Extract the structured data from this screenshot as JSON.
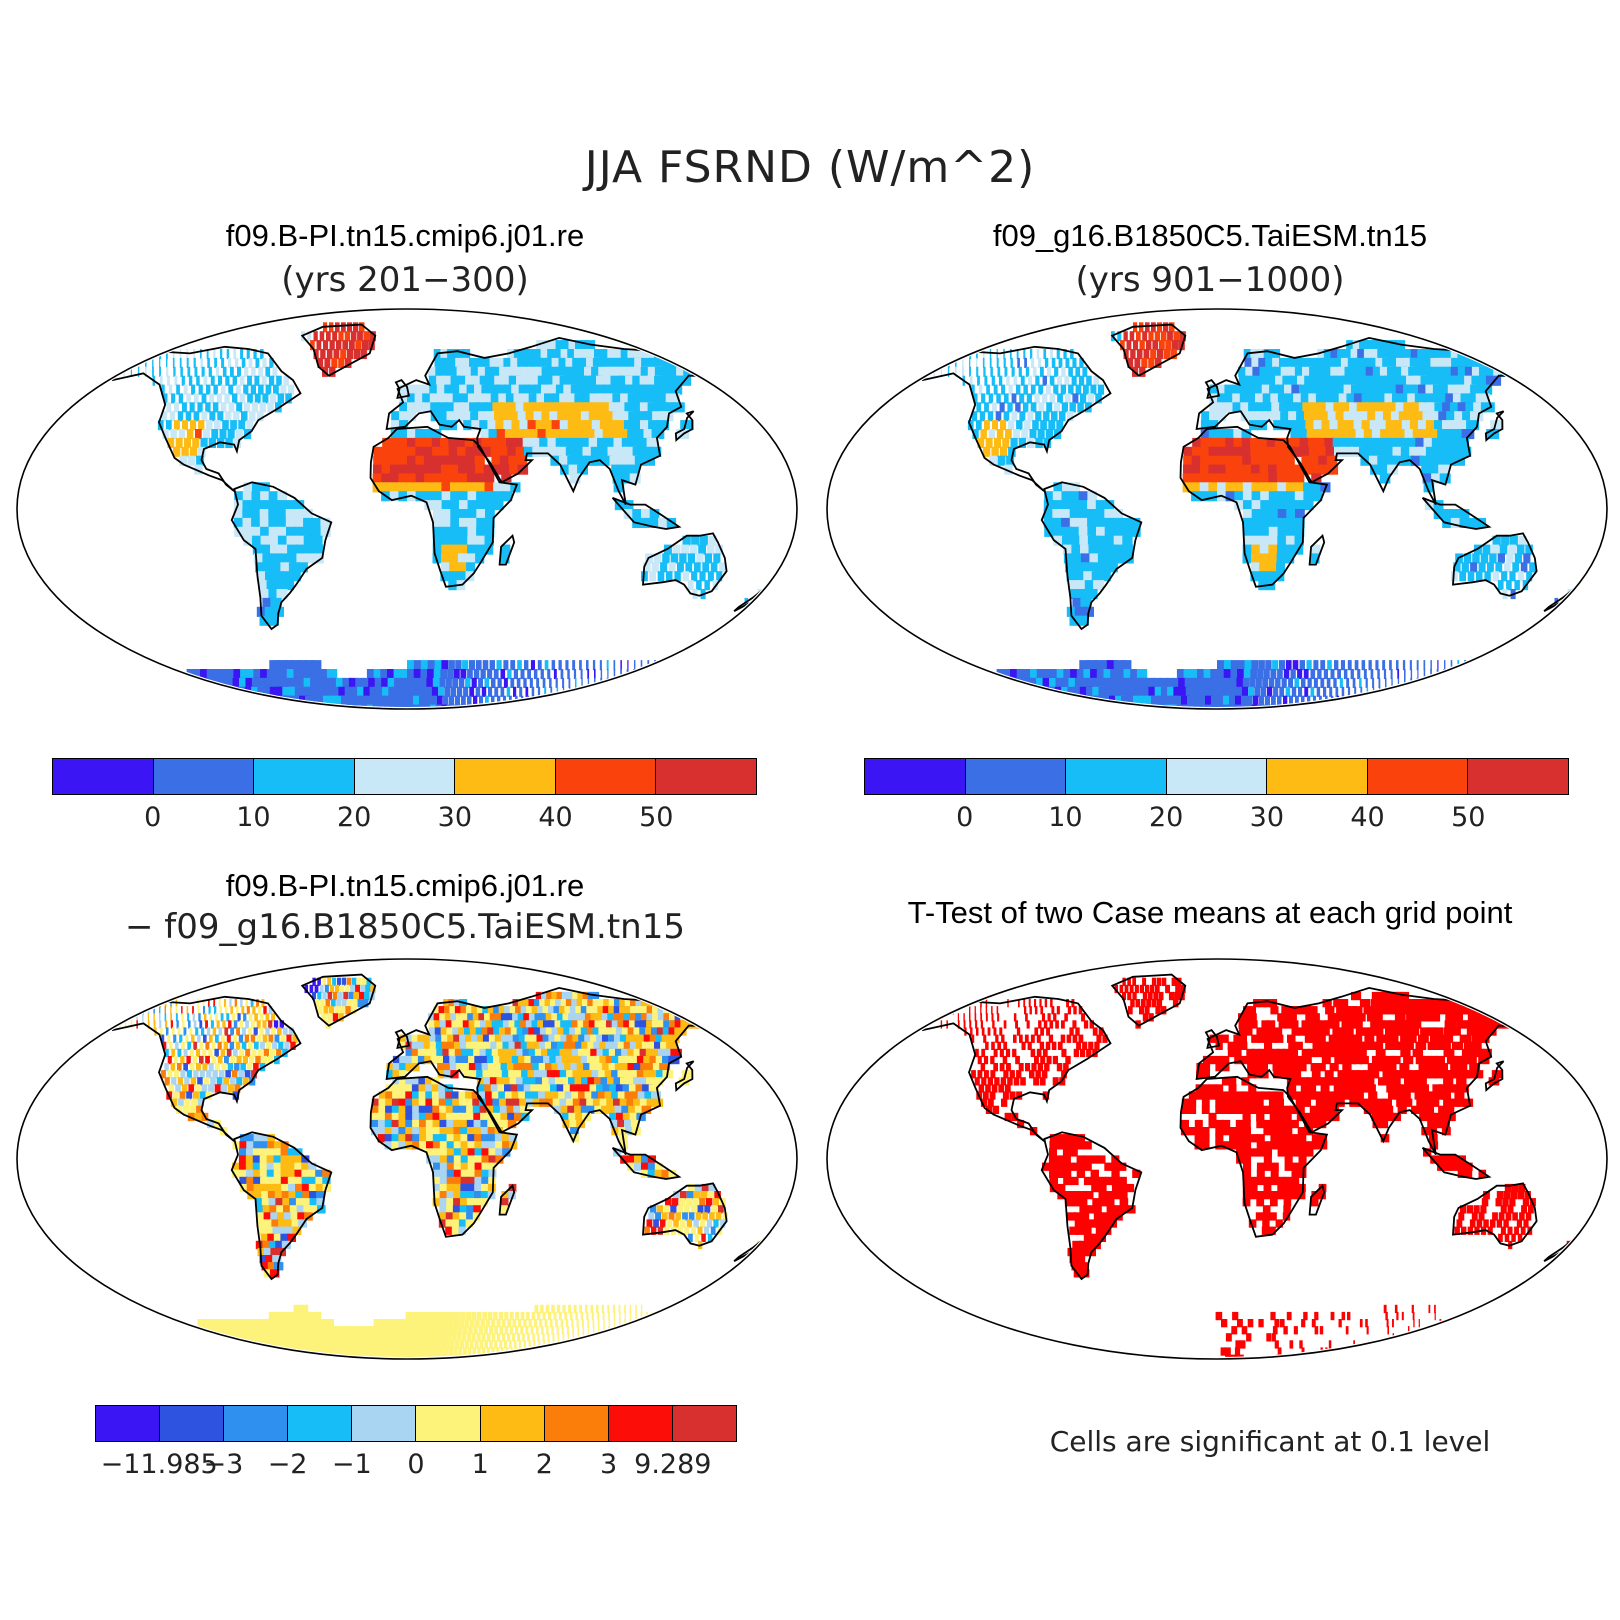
{
  "title": "JJA FSRND (W/m^2)",
  "panels": [
    {
      "id": "case1",
      "title": "f09.B-PI.tn15.cmip6.j01.re",
      "subtitle": "(yrs 201−300)"
    },
    {
      "id": "case2",
      "title": "f09_g16.B1850C5.TaiESM.tn15",
      "subtitle": "(yrs 901−1000)"
    },
    {
      "id": "diff",
      "title": "f09.B-PI.tn15.cmip6.j01.re",
      "subtitle": "− f09_g16.B1850C5.TaiESM.tn15"
    },
    {
      "id": "ttest",
      "title": "T-Test of two Case means at each grid point",
      "subtitle": ""
    }
  ],
  "colorbar_main": {
    "colors": [
      "#3c15f5",
      "#3a6fe6",
      "#16bdf7",
      "#c8e7f7",
      "#fdbb14",
      "#f9420c",
      "#d7302f"
    ],
    "labels": [
      "0",
      "10",
      "20",
      "30",
      "40",
      "50"
    ]
  },
  "colorbar_diff": {
    "colors": [
      "#3c15f5",
      "#2e53e0",
      "#2f90f0",
      "#16bdf7",
      "#a9d4f2",
      "#fdf27a",
      "#fdbb14",
      "#fb7e0a",
      "#fc0d08",
      "#d7302f"
    ],
    "labels": [
      "−11.985",
      "−3",
      "−2",
      "−1",
      "0",
      "1",
      "2",
      "3",
      "9.289"
    ]
  },
  "significance_color": "#ff0000",
  "note": "Cells are significant at 0.1 level"
}
